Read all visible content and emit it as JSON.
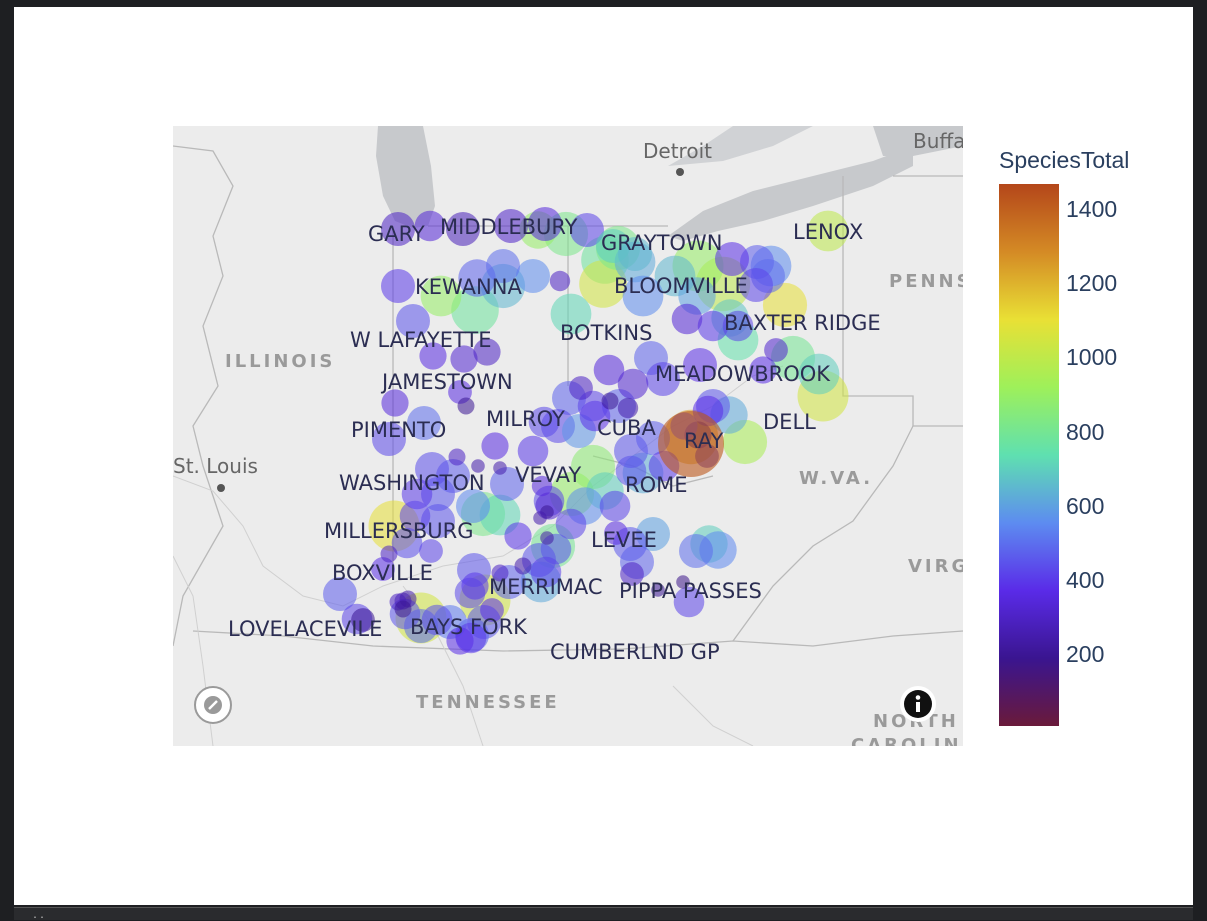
{
  "legend": {
    "title": "SpeciesTotal",
    "ticks": [
      {
        "label": "1400",
        "value": 1400
      },
      {
        "label": "1200",
        "value": 1200
      },
      {
        "label": "1000",
        "value": 1000
      },
      {
        "label": "800",
        "value": 800
      },
      {
        "label": "600",
        "value": 600
      },
      {
        "label": "400",
        "value": 400
      },
      {
        "label": "200",
        "value": 200
      }
    ],
    "min": 10,
    "max": 1470,
    "colorscale": [
      "#6a1a3a",
      "#3a1590",
      "#5a2be8",
      "#5d8cf0",
      "#5fe0b0",
      "#9ef05a",
      "#e9e035",
      "#d48a25",
      "#b4461a"
    ]
  },
  "basemap": {
    "cities": [
      {
        "name": "Detroit"
      },
      {
        "name": "Buffa"
      },
      {
        "name": "St. Louis"
      }
    ],
    "states": [
      {
        "name": "ILLINOIS"
      },
      {
        "name": "PENNS"
      },
      {
        "name": "W.VA."
      },
      {
        "name": "VIRG"
      },
      {
        "name": "TENNESSEE"
      },
      {
        "name": "NORTH"
      },
      {
        "name": "CAROLIN"
      }
    ]
  },
  "sites": [
    {
      "name": "GARY"
    },
    {
      "name": "MIDDLEBURY"
    },
    {
      "name": "GRAYTOWN"
    },
    {
      "name": "LENOX"
    },
    {
      "name": "KEWANNA"
    },
    {
      "name": "BLOOMVILLE"
    },
    {
      "name": "BAXTER RIDGE"
    },
    {
      "name": "W LAFAYETTE"
    },
    {
      "name": "BOTKINS"
    },
    {
      "name": "JAMESTOWN"
    },
    {
      "name": "MEADOWBROOK"
    },
    {
      "name": "PIMENTO"
    },
    {
      "name": "MILROY"
    },
    {
      "name": "CUBA"
    },
    {
      "name": "RAY"
    },
    {
      "name": "DELL"
    },
    {
      "name": "WASHINGTON"
    },
    {
      "name": "VEVAY"
    },
    {
      "name": "ROME"
    },
    {
      "name": "MILLERSBURG"
    },
    {
      "name": "LEVEE"
    },
    {
      "name": "BOXVILLE"
    },
    {
      "name": "MERRIMAC"
    },
    {
      "name": "PIPPA PASSES"
    },
    {
      "name": "LOVELACEVILE"
    },
    {
      "name": "BAYS FORK"
    },
    {
      "name": "CUMBERLND GP"
    }
  ],
  "bubbles": [
    {
      "v": 300,
      "s": 1.0
    },
    {
      "v": 340,
      "s": 0.9
    },
    {
      "v": 280,
      "s": 1.0
    },
    {
      "v": 310,
      "s": 1.0
    },
    {
      "v": 350,
      "s": 1.0
    },
    {
      "v": 820,
      "s": 1.3
    },
    {
      "v": 900,
      "s": 1.1
    },
    {
      "v": 420,
      "s": 1.0
    },
    {
      "v": 700,
      "s": 1.0
    },
    {
      "v": 650,
      "s": 1.0
    },
    {
      "v": 1000,
      "s": 1.2
    },
    {
      "v": 560,
      "s": 1.2
    },
    {
      "v": 470,
      "s": 1.0
    },
    {
      "v": 380,
      "s": 1.0
    },
    {
      "v": 500,
      "s": 1.0
    },
    {
      "v": 420,
      "s": 1.0
    },
    {
      "v": 820,
      "s": 1.3
    },
    {
      "v": 780,
      "s": 1.4
    },
    {
      "v": 620,
      "s": 1.2
    },
    {
      "v": 300,
      "s": 0.6
    },
    {
      "v": 560,
      "s": 1.0
    },
    {
      "v": 480,
      "s": 1.1
    },
    {
      "v": 900,
      "s": 1.2
    },
    {
      "v": 780,
      "s": 1.4
    },
    {
      "v": 650,
      "s": 1.3
    },
    {
      "v": 720,
      "s": 1.2
    },
    {
      "v": 1050,
      "s": 1.4
    },
    {
      "v": 900,
      "s": 1.5
    },
    {
      "v": 1000,
      "s": 1.6
    },
    {
      "v": 650,
      "s": 1.2
    },
    {
      "v": 600,
      "s": 1.1
    },
    {
      "v": 560,
      "s": 1.2
    },
    {
      "v": 400,
      "s": 0.9
    },
    {
      "v": 340,
      "s": 0.9
    },
    {
      "v": 680,
      "s": 1.1
    },
    {
      "v": 1100,
      "s": 1.3
    },
    {
      "v": 750,
      "s": 1.2
    },
    {
      "v": 420,
      "s": 0.9
    },
    {
      "v": 380,
      "s": 1.0
    },
    {
      "v": 450,
      "s": 1.0
    },
    {
      "v": 480,
      "s": 1.0
    },
    {
      "v": 420,
      "s": 1.0
    },
    {
      "v": 350,
      "s": 0.9
    },
    {
      "v": 330,
      "s": 0.9
    },
    {
      "v": 300,
      "s": 0.7
    },
    {
      "v": 380,
      "s": 0.9
    },
    {
      "v": 200,
      "s": 0.5
    },
    {
      "v": 250,
      "s": 0.6
    },
    {
      "v": 500,
      "s": 1.0
    },
    {
      "v": 400,
      "s": 1.0
    },
    {
      "v": 450,
      "s": 1.0
    },
    {
      "v": 360,
      "s": 0.8
    },
    {
      "v": 330,
      "s": 0.8
    },
    {
      "v": 300,
      "s": 0.8
    },
    {
      "v": 360,
      "s": 0.7
    },
    {
      "v": 200,
      "s": 0.5
    },
    {
      "v": 500,
      "s": 1.0
    },
    {
      "v": 430,
      "s": 1.0
    },
    {
      "v": 350,
      "s": 0.8
    },
    {
      "v": 1250,
      "s": 1.6
    },
    {
      "v": 180,
      "s": 0.8
    },
    {
      "v": 250,
      "s": 0.7
    },
    {
      "v": 420,
      "s": 0.8
    },
    {
      "v": 380,
      "s": 0.9
    },
    {
      "v": 620,
      "s": 1.1
    },
    {
      "v": 950,
      "s": 1.3
    },
    {
      "v": 800,
      "s": 1.3
    },
    {
      "v": 700,
      "s": 1.2
    },
    {
      "v": 1050,
      "s": 1.5
    },
    {
      "v": 320,
      "s": 0.7
    },
    {
      "v": 380,
      "s": 0.8
    },
    {
      "v": 480,
      "s": 1.0
    },
    {
      "v": 450,
      "s": 1.0
    },
    {
      "v": 470,
      "s": 1.0
    },
    {
      "v": 400,
      "s": 0.9
    },
    {
      "v": 450,
      "s": 0.9
    },
    {
      "v": 420,
      "s": 0.9
    },
    {
      "v": 480,
      "s": 1.0
    },
    {
      "v": 430,
      "s": 1.0
    },
    {
      "v": 580,
      "s": 1.0
    },
    {
      "v": 870,
      "s": 1.3
    },
    {
      "v": 700,
      "s": 1.1
    },
    {
      "v": 630,
      "s": 1.2
    },
    {
      "v": 900,
      "s": 1.3
    },
    {
      "v": 560,
      "s": 1.1
    },
    {
      "v": 330,
      "s": 0.8
    },
    {
      "v": 350,
      "s": 0.6
    },
    {
      "v": 200,
      "s": 0.4
    },
    {
      "v": 250,
      "s": 0.4
    },
    {
      "v": 430,
      "s": 0.9
    },
    {
      "v": 400,
      "s": 0.9
    },
    {
      "v": 360,
      "s": 0.8
    },
    {
      "v": 250,
      "s": 0.4
    },
    {
      "v": 250,
      "s": 0.4
    },
    {
      "v": 300,
      "s": 0.5
    },
    {
      "v": 470,
      "s": 1.0
    },
    {
      "v": 460,
      "s": 1.0
    },
    {
      "v": 440,
      "s": 1.0
    },
    {
      "v": 400,
      "s": 0.9
    },
    {
      "v": 420,
      "s": 0.9
    },
    {
      "v": 550,
      "s": 1.0
    },
    {
      "v": 480,
      "s": 1.0
    },
    {
      "v": 720,
      "s": 1.2
    },
    {
      "v": 820,
      "s": 1.3
    },
    {
      "v": 450,
      "s": 1.0
    },
    {
      "v": 440,
      "s": 0.9
    },
    {
      "v": 420,
      "s": 0.7
    },
    {
      "v": 1100,
      "s": 1.5
    },
    {
      "v": 300,
      "s": 0.5
    },
    {
      "v": 380,
      "s": 0.7
    },
    {
      "v": 430,
      "s": 0.9
    },
    {
      "v": 420,
      "s": 0.9
    },
    {
      "v": 360,
      "s": 0.7
    },
    {
      "v": 600,
      "s": 1.0
    },
    {
      "v": 700,
      "s": 1.1
    },
    {
      "v": 550,
      "s": 1.1
    },
    {
      "v": 500,
      "s": 1.0
    },
    {
      "v": 420,
      "s": 0.9
    },
    {
      "v": 180,
      "s": 0.4
    },
    {
      "v": 420,
      "s": 0.9
    },
    {
      "v": 460,
      "s": 1.0
    },
    {
      "v": 480,
      "s": 1.0
    },
    {
      "v": 300,
      "s": 0.7
    },
    {
      "v": 200,
      "s": 0.4
    },
    {
      "v": 230,
      "s": 0.4
    },
    {
      "v": 450,
      "s": 0.9
    },
    {
      "v": 420,
      "s": 0.9
    },
    {
      "v": 450,
      "s": 1.0
    },
    {
      "v": 390,
      "s": 0.8
    },
    {
      "v": 250,
      "s": 0.5
    },
    {
      "v": 800,
      "s": 1.3
    },
    {
      "v": 620,
      "s": 1.2
    },
    {
      "v": 480,
      "s": 1.0
    },
    {
      "v": 450,
      "s": 1.0
    },
    {
      "v": 430,
      "s": 0.9
    },
    {
      "v": 1050,
      "s": 1.5
    },
    {
      "v": 380,
      "s": 0.7
    },
    {
      "v": 400,
      "s": 0.8
    },
    {
      "v": 300,
      "s": 0.5
    },
    {
      "v": 250,
      "s": 0.5
    },
    {
      "v": 300,
      "s": 0.5
    },
    {
      "v": 250,
      "s": 0.5
    },
    {
      "v": 470,
      "s": 1.0
    },
    {
      "v": 420,
      "s": 0.9
    },
    {
      "v": 500,
      "s": 1.0
    },
    {
      "v": 440,
      "s": 0.9
    },
    {
      "v": 460,
      "s": 1.0
    },
    {
      "v": 480,
      "s": 1.0
    },
    {
      "v": 380,
      "s": 0.8
    },
    {
      "v": 520,
      "s": 1.0
    },
    {
      "v": 1050,
      "s": 1.5
    },
    {
      "v": 200,
      "s": 0.7
    },
    {
      "v": 200,
      "s": 0.5
    },
    {
      "v": 450,
      "s": 0.9
    },
    {
      "v": 400,
      "s": 0.9
    }
  ]
}
